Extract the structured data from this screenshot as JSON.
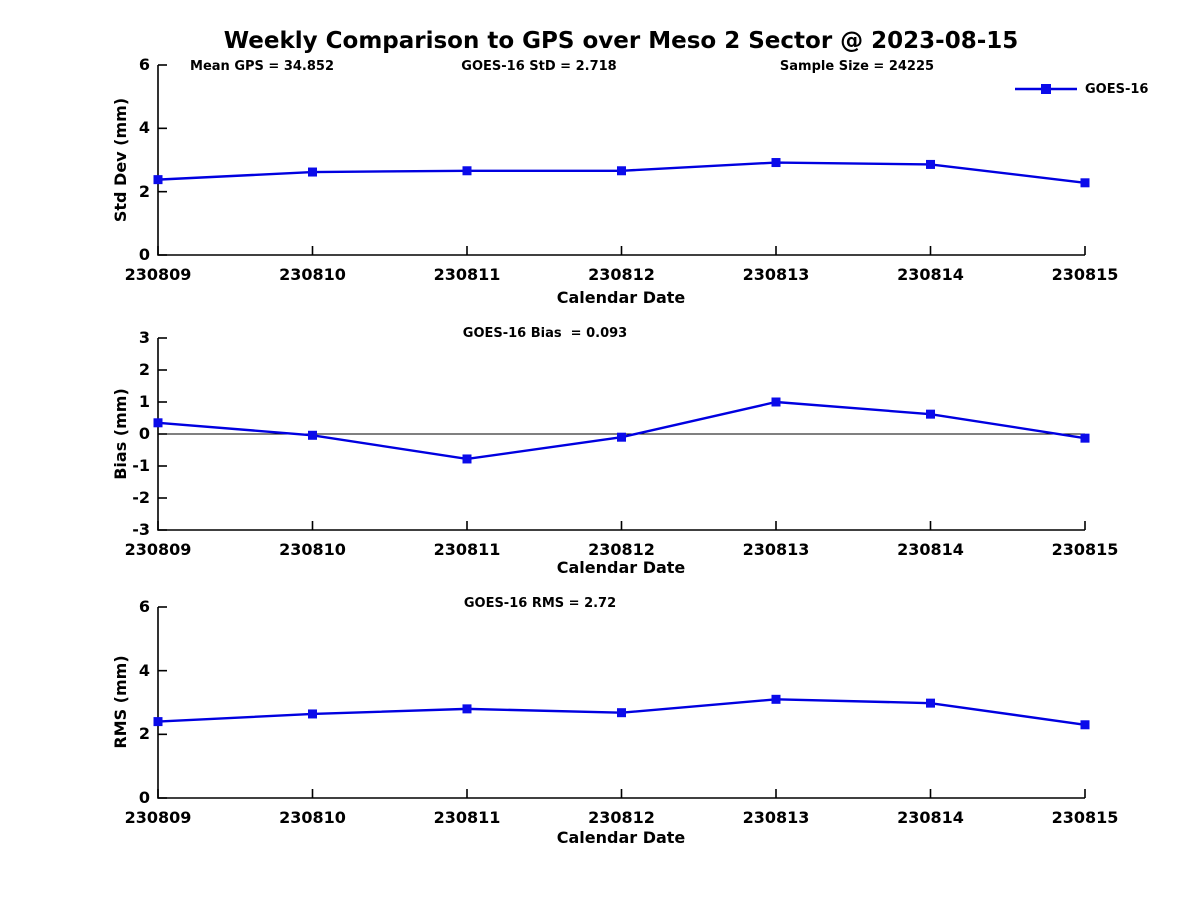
{
  "figure": {
    "title": "Weekly Comparison to GPS over Meso 2 Sector @ 2023-08-15",
    "legend_label": "GOES-16",
    "line_color": "#0000e0",
    "marker_color": "#0b0bea",
    "axis_color": "#000000"
  },
  "chart_data": [
    {
      "type": "line",
      "panel": "std-dev",
      "annotations": [
        "Mean GPS = 34.852",
        "GOES-16 StD = 2.718",
        "Sample Size = 24225"
      ],
      "categories": [
        "230809",
        "230810",
        "230811",
        "230812",
        "230813",
        "230814",
        "230815"
      ],
      "series": [
        {
          "name": "GOES-16",
          "values": [
            2.38,
            2.62,
            2.66,
            2.66,
            2.92,
            2.86,
            2.28
          ]
        }
      ],
      "xlabel": "Calendar Date",
      "ylabel": "Std Dev (mm)",
      "ylim": [
        0,
        6
      ],
      "yticks": [
        0,
        2,
        4,
        6
      ],
      "grid": false,
      "legend_position": "top-right",
      "marker": "square"
    },
    {
      "type": "line",
      "panel": "bias",
      "annotations": [
        "GOES-16 Bias  = 0.093"
      ],
      "categories": [
        "230809",
        "230810",
        "230811",
        "230812",
        "230813",
        "230814",
        "230815"
      ],
      "series": [
        {
          "name": "GOES-16",
          "values": [
            0.35,
            -0.04,
            -0.78,
            -0.1,
            1.0,
            0.62,
            -0.13
          ]
        }
      ],
      "xlabel": "Calendar Date",
      "ylabel": "Bias (mm)",
      "ylim": [
        -3,
        3
      ],
      "yticks": [
        -3,
        -2,
        -1,
        0,
        1,
        2,
        3
      ],
      "zero_line": true,
      "grid": false,
      "marker": "square"
    },
    {
      "type": "line",
      "panel": "rms",
      "annotations": [
        "GOES-16 RMS = 2.72"
      ],
      "categories": [
        "230809",
        "230810",
        "230811",
        "230812",
        "230813",
        "230814",
        "230815"
      ],
      "series": [
        {
          "name": "GOES-16",
          "values": [
            2.4,
            2.64,
            2.8,
            2.68,
            3.1,
            2.98,
            2.3
          ]
        }
      ],
      "xlabel": "Calendar Date",
      "ylabel": "RMS (mm)",
      "ylim": [
        0,
        6
      ],
      "yticks": [
        0,
        2,
        4,
        6
      ],
      "grid": false,
      "marker": "square"
    }
  ]
}
